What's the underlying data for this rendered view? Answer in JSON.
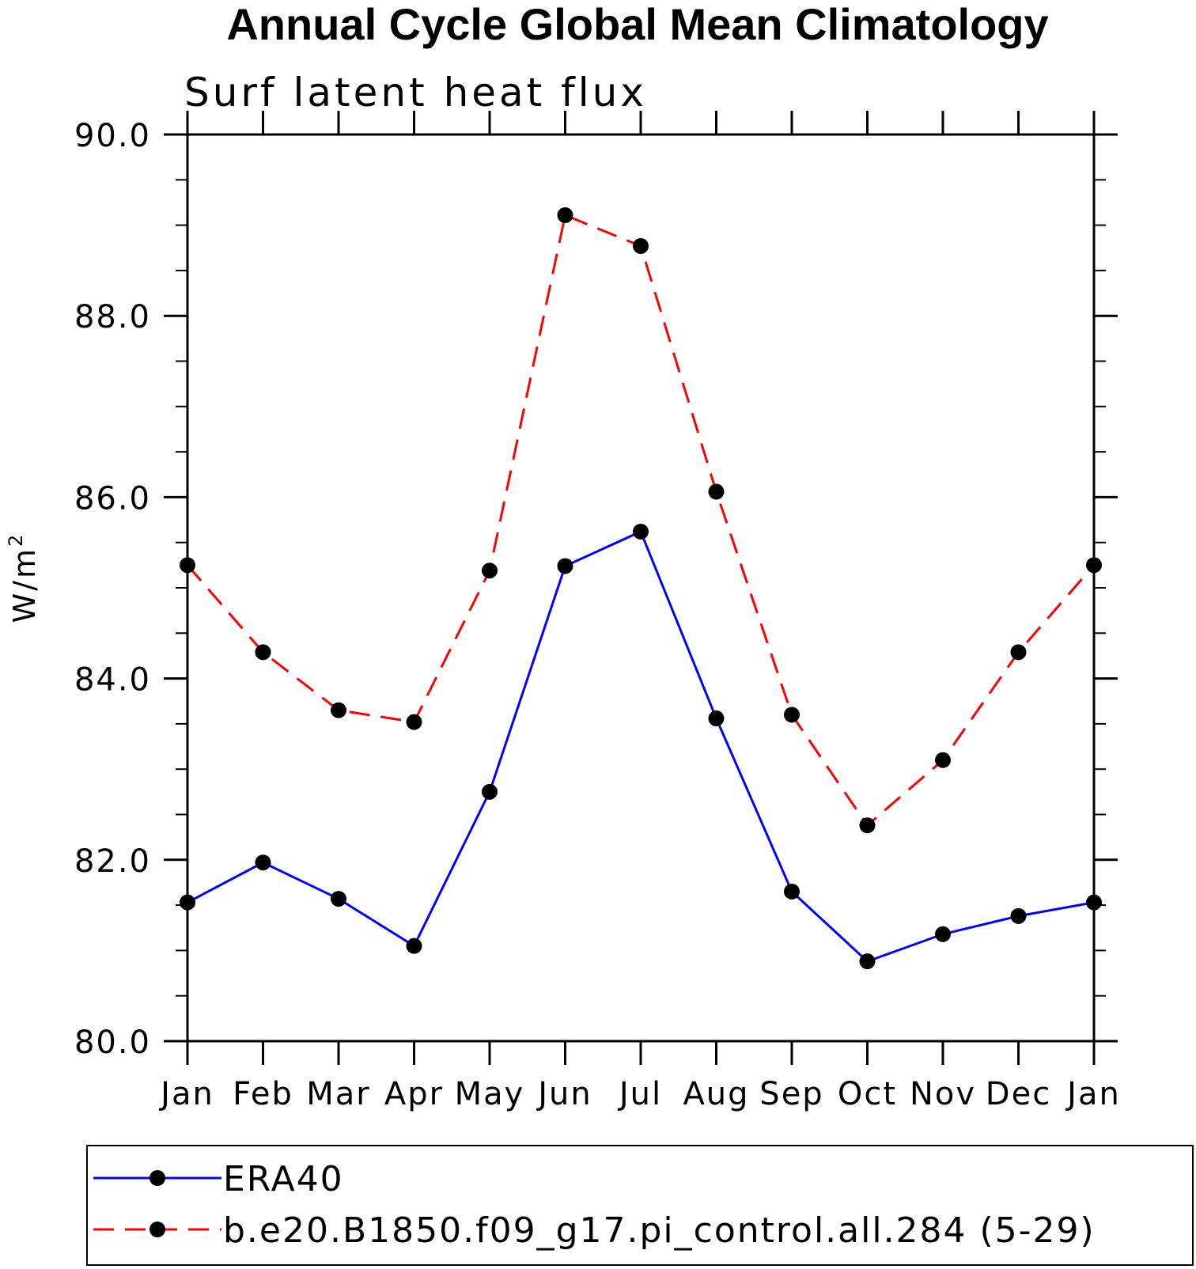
{
  "chart_data": {
    "type": "line",
    "title": "Annual Cycle Global Mean Climatology",
    "subtitle": "Surf latent heat flux",
    "xlabel": "",
    "ylabel": "W/m",
    "ylabel_superscript": "2",
    "categories": [
      "Jan",
      "Feb",
      "Mar",
      "Apr",
      "May",
      "Jun",
      "Jul",
      "Aug",
      "Sep",
      "Oct",
      "Nov",
      "Dec",
      "Jan"
    ],
    "ylim": [
      80.0,
      90.0
    ],
    "yticks": [
      "80.0",
      "82.0",
      "84.0",
      "86.0",
      "88.0",
      "90.0"
    ],
    "grid": false,
    "legend_position": "bottom",
    "series": [
      {
        "name": "ERA40",
        "color": "#0000ff",
        "dash": "solid",
        "marker": "filled-circle",
        "values": [
          81.53,
          81.97,
          81.57,
          81.05,
          82.75,
          85.24,
          85.62,
          83.56,
          81.65,
          80.88,
          81.18,
          81.38,
          81.53
        ]
      },
      {
        "name": "b.e20.B1850.f09_g17.pi_control.all.284 (5-29)",
        "color": "#ff0000",
        "dash": "dashed",
        "marker": "filled-circle",
        "values": [
          85.25,
          84.29,
          83.65,
          83.52,
          85.19,
          89.11,
          88.77,
          86.06,
          83.6,
          82.38,
          83.1,
          84.29,
          85.25
        ]
      }
    ]
  }
}
